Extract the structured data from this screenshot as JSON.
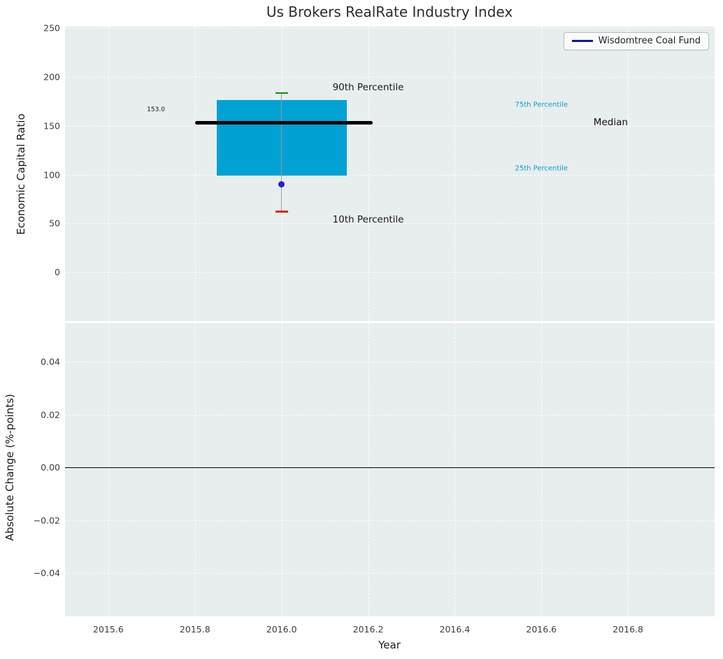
{
  "title": "Us Brokers RealRate Industry Index",
  "xlabel": "Year",
  "legend": {
    "label": "Wisdomtree Coal Fund",
    "line_color": "#1414a0"
  },
  "style": {
    "plot_background": "#e8edee",
    "grid_color": "#ffffff",
    "tick_color": "#3d3d3d"
  },
  "chart_data": [
    {
      "type": "box",
      "panel": "top",
      "title": "Us Brokers RealRate Industry Index",
      "xlabel": "Year",
      "ylabel": "Economic Capital Ratio",
      "xlim": [
        2015.5,
        2017.0
      ],
      "ylim": [
        -50,
        251.5
      ],
      "grid": true,
      "legend_position": "upper right",
      "xticks": [
        {
          "v": 2015.6,
          "label": "2015.6"
        },
        {
          "v": 2015.8,
          "label": "2015.8"
        },
        {
          "v": 2016.0,
          "label": "2016.0"
        },
        {
          "v": 2016.2,
          "label": "2016.2"
        },
        {
          "v": 2016.4,
          "label": "2016.4"
        },
        {
          "v": 2016.6,
          "label": "2016.6"
        },
        {
          "v": 2016.8,
          "label": "2016.8"
        }
      ],
      "yticks": [
        {
          "v": 250,
          "label": "250"
        },
        {
          "v": 200,
          "label": "200"
        },
        {
          "v": 150,
          "label": "150"
        },
        {
          "v": 100,
          "label": "100"
        },
        {
          "v": 50,
          "label": "50"
        },
        {
          "v": 0,
          "label": "0"
        }
      ],
      "series_name": "Wisdomtree Coal Fund",
      "box": {
        "x_center": 2016.0,
        "box_left": 2015.85,
        "box_right": 2016.15,
        "median_left": 2015.8,
        "median_right": 2016.21,
        "p10": 62,
        "p25": 99,
        "median": 153.0,
        "p75": 176,
        "p90": 183.5,
        "fund_value": 90,
        "median_label": "153.0",
        "colors": {
          "box": "#00a2d4",
          "median": "#000000",
          "whisker": "#9a9a9a",
          "cap_top": "#0a8f0a",
          "cap_bottom": "#e22222",
          "dot": "#2222cc"
        }
      },
      "annotations": [
        {
          "name": "label-90th-percentile",
          "text": "90th Percentile",
          "x": 2016.2,
          "y": 189,
          "color": "#1a1a1a",
          "size": 13.5
        },
        {
          "name": "label-10th-percentile",
          "text": "10th Percentile",
          "x": 2016.2,
          "y": 54,
          "color": "#1a1a1a",
          "size": 13.5
        },
        {
          "name": "label-75th-percentile",
          "text": "75th Percentile",
          "x": 2016.6,
          "y": 171,
          "color": "#0a9dc4",
          "size": 10
        },
        {
          "name": "label-25th-percentile",
          "text": "25th Percentile",
          "x": 2016.6,
          "y": 106,
          "color": "#0a9dc4",
          "size": 10
        },
        {
          "name": "label-median",
          "text": "Median",
          "x": 2016.76,
          "y": 153.5,
          "color": "#111111",
          "size": 13.5
        },
        {
          "name": "label-median-value",
          "text": "153.0",
          "x": 2015.71,
          "y": 166,
          "color": "#111111",
          "size": 9
        }
      ]
    },
    {
      "type": "line",
      "panel": "bottom",
      "ylabel": "Absolute Change (%-points)",
      "xlim": [
        2015.5,
        2017.0
      ],
      "ylim": [
        -0.0564,
        0.0546
      ],
      "grid": true,
      "zero_line": 0.0,
      "series": [],
      "yticks": [
        {
          "v": 0.04,
          "label": "0.04"
        },
        {
          "v": 0.02,
          "label": "0.02"
        },
        {
          "v": 0.0,
          "label": "0.00"
        },
        {
          "v": -0.02,
          "label": "−0.02"
        },
        {
          "v": -0.04,
          "label": "−0.04"
        }
      ]
    }
  ]
}
